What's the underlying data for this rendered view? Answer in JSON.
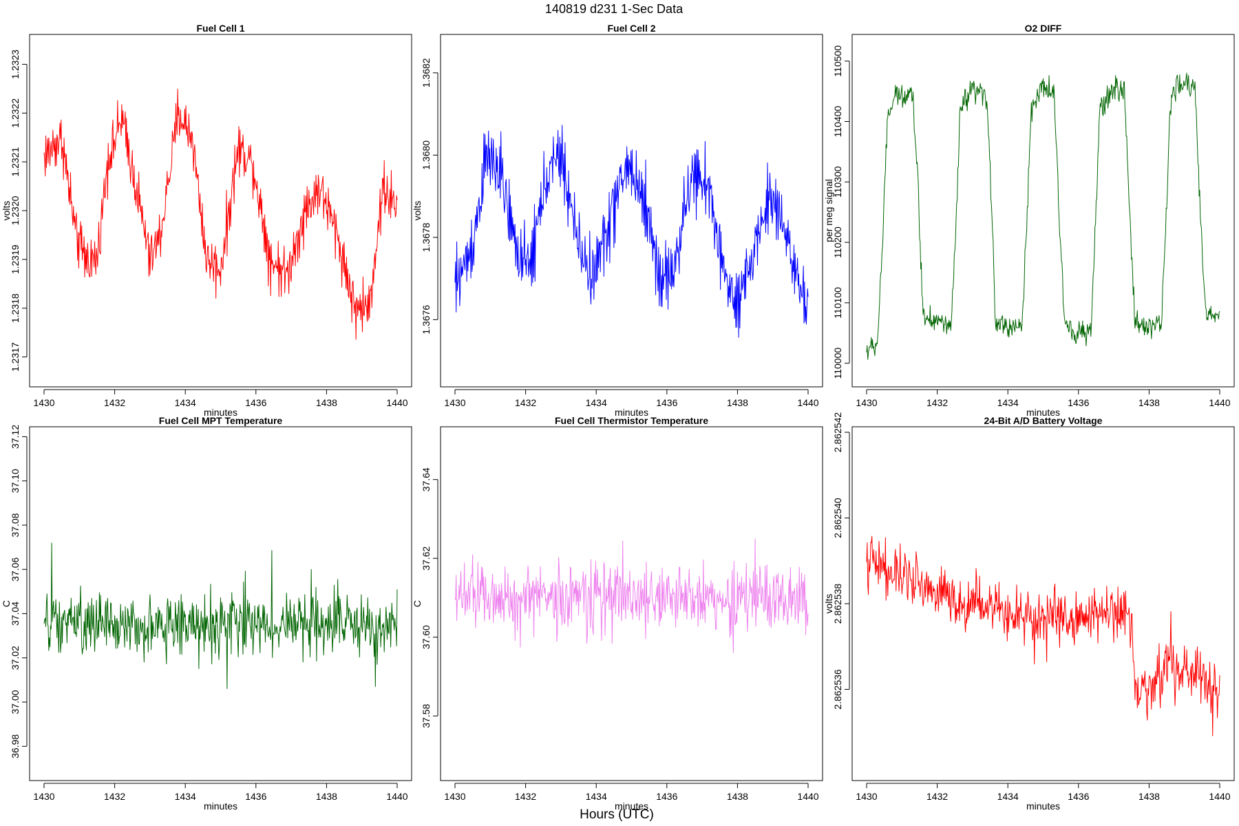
{
  "figure": {
    "title": "140819   d231   1-Sec Data",
    "xlabel_bottom": "Hours (UTC)"
  },
  "chart_data": [
    {
      "type": "line",
      "title": "Fuel Cell 1",
      "xlabel": "minutes",
      "ylabel": "volts",
      "color": "#ff0000",
      "xlim": [
        1430,
        1440
      ],
      "ylim": [
        1.23165,
        1.23235
      ],
      "xticks": [
        1430,
        1432,
        1434,
        1436,
        1438,
        1440
      ],
      "yticks": [
        1.2317,
        1.2318,
        1.2319,
        1.232,
        1.2321,
        1.2322,
        1.2323
      ],
      "ytick_labels": [
        "1.2317",
        "1.2318",
        "1.2319",
        "1.2320",
        "1.2321",
        "1.2322",
        "1.2323"
      ],
      "pattern": "oscillating",
      "anchors": [
        [
          1430,
          1.23211
        ],
        [
          1430.5,
          1.23215
        ],
        [
          1430.9,
          1.23195
        ],
        [
          1431.2,
          1.2319
        ],
        [
          1431.5,
          1.2319
        ],
        [
          1431.8,
          1.2321
        ],
        [
          1432.2,
          1.23219
        ],
        [
          1432.6,
          1.23205
        ],
        [
          1433.0,
          1.2319
        ],
        [
          1433.3,
          1.23195
        ],
        [
          1433.8,
          1.2322
        ],
        [
          1434.2,
          1.23215
        ],
        [
          1434.6,
          1.2319
        ],
        [
          1435.0,
          1.23188
        ],
        [
          1435.5,
          1.23213
        ],
        [
          1435.9,
          1.2321
        ],
        [
          1436.4,
          1.2319
        ],
        [
          1436.9,
          1.23187
        ],
        [
          1437.3,
          1.23198
        ],
        [
          1437.8,
          1.23205
        ],
        [
          1438.3,
          1.23195
        ],
        [
          1438.8,
          1.2318
        ],
        [
          1439.2,
          1.2318
        ],
        [
          1439.6,
          1.23205
        ],
        [
          1440,
          1.232
        ]
      ],
      "noise": 8e-05
    },
    {
      "type": "line",
      "title": "Fuel Cell 2",
      "xlabel": "minutes",
      "ylabel": "volts",
      "color": "#0000ff",
      "xlim": [
        1430,
        1440
      ],
      "ylim": [
        1.36745,
        1.36828
      ],
      "xticks": [
        1430,
        1432,
        1434,
        1436,
        1438,
        1440
      ],
      "yticks": [
        1.3676,
        1.3678,
        1.368,
        1.3682
      ],
      "ytick_labels": [
        "1.3676",
        "1.3678",
        "1.3680",
        "1.3682"
      ],
      "pattern": "oscillating",
      "anchors": [
        [
          1430,
          1.36768
        ],
        [
          1430.5,
          1.36778
        ],
        [
          1430.9,
          1.368
        ],
        [
          1431.3,
          1.36795
        ],
        [
          1431.7,
          1.36778
        ],
        [
          1432.1,
          1.36772
        ],
        [
          1432.6,
          1.36795
        ],
        [
          1433.0,
          1.368
        ],
        [
          1433.5,
          1.36778
        ],
        [
          1433.9,
          1.3677
        ],
        [
          1434.4,
          1.36785
        ],
        [
          1434.9,
          1.36798
        ],
        [
          1435.4,
          1.36788
        ],
        [
          1435.8,
          1.3677
        ],
        [
          1436.2,
          1.36772
        ],
        [
          1436.7,
          1.36795
        ],
        [
          1437.2,
          1.36792
        ],
        [
          1437.6,
          1.36772
        ],
        [
          1438.0,
          1.36762
        ],
        [
          1438.4,
          1.36775
        ],
        [
          1438.9,
          1.3679
        ],
        [
          1439.3,
          1.36785
        ],
        [
          1439.7,
          1.36768
        ],
        [
          1440,
          1.36763
        ]
      ],
      "noise": 0.00012
    },
    {
      "type": "line",
      "title": "O2 DIFF",
      "xlabel": "minutes",
      "ylabel": "per meg signal",
      "color": "#006400",
      "xlim": [
        1430,
        1440
      ],
      "ylim": [
        109970,
        110535
      ],
      "xticks": [
        1430,
        1432,
        1434,
        1436,
        1438,
        1440
      ],
      "yticks": [
        110000,
        110100,
        110200,
        110300,
        110400,
        110500
      ],
      "ytick_labels": [
        "110000",
        "110100",
        "110200",
        "110300",
        "110400",
        "110500"
      ],
      "pattern": "square",
      "anchors": [
        [
          1430,
          110020
        ],
        [
          1430.3,
          110030
        ],
        [
          1430.45,
          110200
        ],
        [
          1430.6,
          110410
        ],
        [
          1430.8,
          110440
        ],
        [
          1431.3,
          110450
        ],
        [
          1431.45,
          110300
        ],
        [
          1431.6,
          110080
        ],
        [
          1432.0,
          110070
        ],
        [
          1432.4,
          110060
        ],
        [
          1432.55,
          110250
        ],
        [
          1432.65,
          110420
        ],
        [
          1433.0,
          110450
        ],
        [
          1433.4,
          110440
        ],
        [
          1433.55,
          110250
        ],
        [
          1433.65,
          110070
        ],
        [
          1434.0,
          110060
        ],
        [
          1434.4,
          110060
        ],
        [
          1434.55,
          110250
        ],
        [
          1434.65,
          110420
        ],
        [
          1435.0,
          110455
        ],
        [
          1435.3,
          110450
        ],
        [
          1435.45,
          110250
        ],
        [
          1435.6,
          110070
        ],
        [
          1436.0,
          110050
        ],
        [
          1436.35,
          110050
        ],
        [
          1436.5,
          110250
        ],
        [
          1436.6,
          110420
        ],
        [
          1437.0,
          110455
        ],
        [
          1437.3,
          110450
        ],
        [
          1437.45,
          110250
        ],
        [
          1437.6,
          110070
        ],
        [
          1438.0,
          110060
        ],
        [
          1438.35,
          110070
        ],
        [
          1438.5,
          110260
        ],
        [
          1438.6,
          110430
        ],
        [
          1438.8,
          110460
        ],
        [
          1439.3,
          110460
        ],
        [
          1439.45,
          110250
        ],
        [
          1439.6,
          110080
        ],
        [
          1440,
          110080
        ]
      ],
      "noise": 25
    },
    {
      "type": "line",
      "title": "Fuel Cell MPT Temperature",
      "xlabel": "minutes",
      "ylabel": "C",
      "color": "#006400",
      "xlim": [
        1430,
        1440
      ],
      "ylim": [
        36.967,
        37.122
      ],
      "xticks": [
        1430,
        1432,
        1434,
        1436,
        1438,
        1440
      ],
      "yticks": [
        36.98,
        37.0,
        37.02,
        37.04,
        37.06,
        37.08,
        37.1,
        37.12
      ],
      "ytick_labels": [
        "36.98",
        "37.00",
        "37.02",
        "37.04",
        "37.06",
        "37.08",
        "37.10",
        "37.12"
      ],
      "pattern": "noise",
      "anchors": [
        [
          1430,
          37.035
        ],
        [
          1435,
          37.035
        ],
        [
          1440,
          37.035
        ]
      ],
      "noise": 0.02
    },
    {
      "type": "line",
      "title": "Fuel Cell Thermistor Temperature",
      "xlabel": "minutes",
      "ylabel": "C",
      "color": "#ee82ee",
      "xlim": [
        1430,
        1440
      ],
      "ylim": [
        37.565,
        37.652
      ],
      "xticks": [
        1430,
        1432,
        1434,
        1436,
        1438,
        1440
      ],
      "yticks": [
        37.58,
        37.6,
        37.62,
        37.64
      ],
      "ytick_labels": [
        "37.58",
        "37.60",
        "37.62",
        "37.64"
      ],
      "pattern": "noise",
      "anchors": [
        [
          1430,
          37.61
        ],
        [
          1435,
          37.61
        ],
        [
          1440,
          37.61
        ]
      ],
      "noise": 0.013
    },
    {
      "type": "line",
      "title": "24-Bit A/D Battery Voltage",
      "xlabel": "minutes",
      "ylabel": "volts",
      "color": "#ff0000",
      "xlim": [
        1430,
        1440
      ],
      "ylim": [
        2.862534,
        2.862542
      ],
      "xticks": [
        1430,
        1432,
        1434,
        1436,
        1438,
        1440
      ],
      "yticks": [
        2.862536,
        2.862538,
        2.86254,
        2.862542
      ],
      "ytick_labels": [
        "2.862536",
        "2.862538",
        "2.862540",
        "2.862542"
      ],
      "pattern": "noise",
      "anchors": [
        [
          1430,
          2.862539
        ],
        [
          1431,
          2.8625386
        ],
        [
          1432.5,
          2.8625381
        ],
        [
          1434,
          2.8625378
        ],
        [
          1436,
          2.8625377
        ],
        [
          1437.5,
          2.8625377
        ],
        [
          1437.6,
          2.8625359
        ],
        [
          1438.5,
          2.8625364
        ],
        [
          1439.2,
          2.8625365
        ],
        [
          1440,
          2.8625358
        ]
      ],
      "noise": 9e-07
    }
  ]
}
